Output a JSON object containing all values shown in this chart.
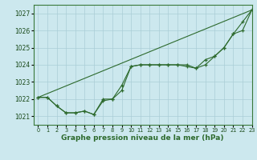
{
  "title": "Graphe pression niveau de la mer (hPa)",
  "background_color": "#cce8ee",
  "grid_color": "#aacdd6",
  "line_color": "#2d6a2d",
  "xlim": [
    -0.5,
    23
  ],
  "ylim": [
    1020.5,
    1027.5
  ],
  "yticks": [
    1021,
    1022,
    1023,
    1024,
    1025,
    1026,
    1027
  ],
  "xticks": [
    0,
    1,
    2,
    3,
    4,
    5,
    6,
    7,
    8,
    9,
    10,
    11,
    12,
    13,
    14,
    15,
    16,
    17,
    18,
    19,
    20,
    21,
    22,
    23
  ],
  "series": [
    {
      "x": [
        0,
        1,
        2,
        3,
        4,
        5,
        6,
        7,
        8,
        9,
        10,
        11,
        12,
        13,
        14,
        15,
        16,
        17,
        18,
        19,
        20,
        21,
        22,
        23
      ],
      "y": [
        1022.1,
        1022.1,
        1021.6,
        1021.2,
        1021.2,
        1021.3,
        1021.1,
        1021.9,
        1022.0,
        1022.8,
        1023.9,
        1024.0,
        1024.0,
        1024.0,
        1024.0,
        1024.0,
        1023.9,
        1023.8,
        1024.0,
        1024.5,
        1025.0,
        1025.8,
        1026.5,
        1027.2
      ],
      "marker": true
    },
    {
      "x": [
        0,
        1,
        2,
        3,
        4,
        5,
        6,
        7,
        8,
        9,
        10,
        11,
        12,
        13,
        14,
        15,
        16,
        17,
        18,
        19,
        20,
        21,
        22,
        23
      ],
      "y": [
        1022.1,
        1022.1,
        1021.6,
        1021.2,
        1021.2,
        1021.3,
        1021.1,
        1022.0,
        1022.0,
        1022.5,
        1023.9,
        1024.0,
        1024.0,
        1024.0,
        1024.0,
        1024.0,
        1024.0,
        1023.8,
        1024.3,
        1024.5,
        1025.0,
        1025.8,
        1026.0,
        1027.2
      ],
      "marker": true
    },
    {
      "x": [
        0,
        23
      ],
      "y": [
        1022.1,
        1027.2
      ],
      "marker": false
    }
  ],
  "figwidth": 3.2,
  "figheight": 2.0,
  "dpi": 100
}
